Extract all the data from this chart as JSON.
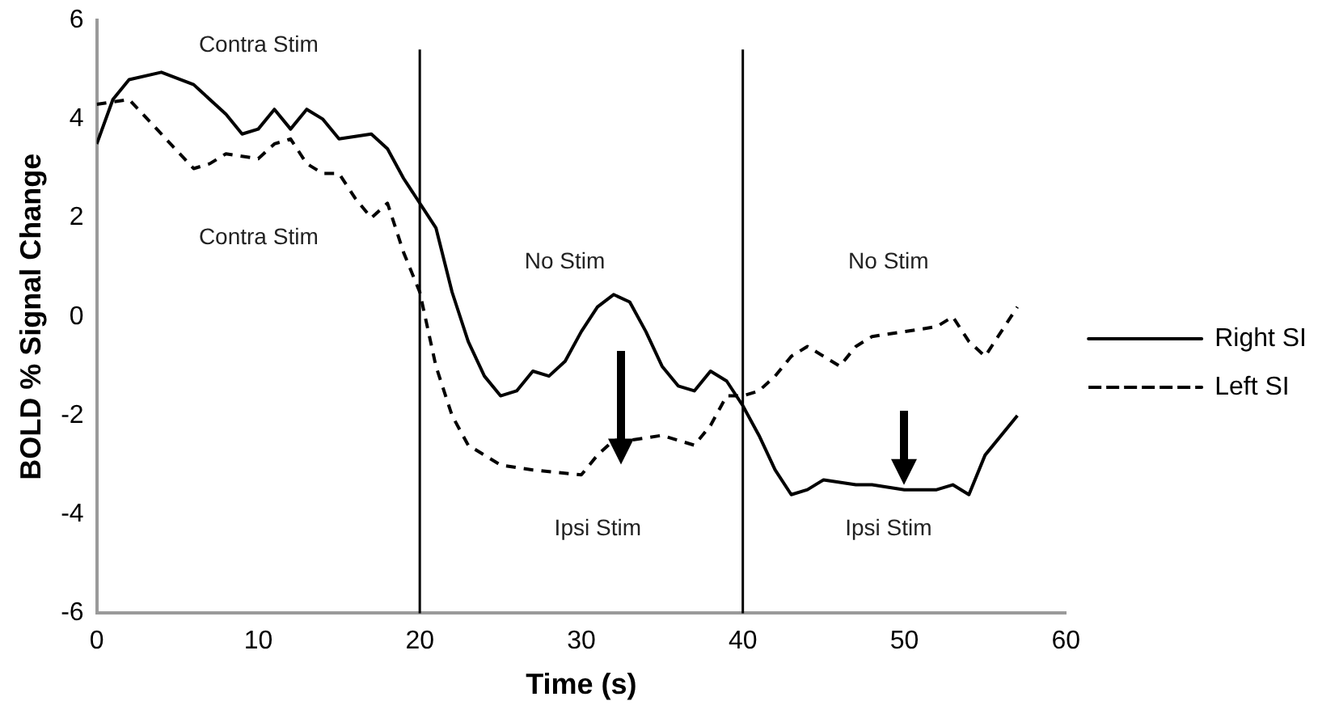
{
  "chart_data": {
    "type": "line",
    "xlabel": "Time (s)",
    "ylabel": "BOLD % Signal Change",
    "xlim": [
      0,
      60
    ],
    "xticks": [
      0,
      10,
      20,
      30,
      40,
      50,
      60
    ],
    "ylim": [
      -6,
      6
    ],
    "yticks": [
      -6,
      -4,
      -2,
      0,
      2,
      4,
      6
    ],
    "grid": false,
    "legend": "right",
    "marker": "none",
    "series": [
      {
        "name": "Right SI",
        "color": "#000000",
        "line_style": "solid",
        "x": [
          0,
          1,
          2,
          4,
          6,
          8,
          9,
          10,
          11,
          12,
          13,
          14,
          15,
          17,
          18,
          19,
          20,
          21,
          22,
          23,
          24,
          25,
          26,
          27,
          28,
          29,
          30,
          31,
          32,
          33,
          34,
          35,
          36,
          37,
          38,
          39,
          40,
          41,
          42,
          43,
          44,
          45,
          47,
          48,
          50,
          52,
          53,
          54,
          55,
          57
        ],
        "values": [
          3.5,
          4.4,
          4.8,
          4.95,
          4.7,
          4.1,
          3.7,
          3.8,
          4.2,
          3.8,
          4.2,
          4.0,
          3.6,
          3.7,
          3.4,
          2.8,
          2.3,
          1.8,
          0.5,
          -0.5,
          -1.2,
          -1.6,
          -1.5,
          -1.1,
          -1.2,
          -0.9,
          -0.3,
          0.2,
          0.45,
          0.3,
          -0.3,
          -1.0,
          -1.4,
          -1.5,
          -1.1,
          -1.3,
          -1.8,
          -2.4,
          -3.1,
          -3.6,
          -3.5,
          -3.3,
          -3.4,
          -3.4,
          -3.5,
          -3.5,
          -3.4,
          -3.6,
          -2.8,
          -2.0
        ]
      },
      {
        "name": "Left SI",
        "color": "#000000",
        "line_style": "dashed",
        "x": [
          0,
          2,
          4,
          6,
          7,
          8,
          10,
          11,
          12,
          13,
          14,
          15,
          16,
          17,
          18,
          19,
          20,
          21,
          22,
          23,
          24,
          25,
          27,
          30,
          31,
          32,
          33,
          35,
          37,
          38,
          39,
          40,
          41,
          42,
          43,
          44,
          45,
          46,
          47,
          48,
          50,
          52,
          53,
          54,
          55,
          56,
          57
        ],
        "values": [
          4.3,
          4.4,
          3.7,
          3.0,
          3.1,
          3.3,
          3.2,
          3.5,
          3.6,
          3.1,
          2.9,
          2.9,
          2.4,
          2.0,
          2.3,
          1.3,
          0.5,
          -1.0,
          -2.0,
          -2.6,
          -2.8,
          -3.0,
          -3.1,
          -3.2,
          -2.8,
          -2.5,
          -2.5,
          -2.4,
          -2.6,
          -2.2,
          -1.6,
          -1.6,
          -1.5,
          -1.2,
          -0.8,
          -0.6,
          -0.8,
          -1.0,
          -0.6,
          -0.4,
          -0.3,
          -0.2,
          0.0,
          -0.5,
          -0.8,
          -0.3,
          0.2
        ]
      }
    ],
    "ref_lines": [
      {
        "axis": "x",
        "value": 20,
        "color": "#000000"
      },
      {
        "axis": "x",
        "value": 40,
        "color": "#000000"
      }
    ],
    "annotations": [
      "Contra Stim",
      "Contra Stim",
      "No Stim",
      "No Stim",
      "Ipsi Stim",
      "Ipsi Stim"
    ]
  }
}
